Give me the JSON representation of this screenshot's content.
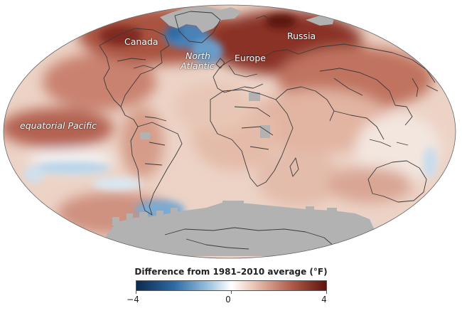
{
  "labels": {
    "canada": "Canada",
    "north_atlantic_line1": "North",
    "north_atlantic_line2": "Atlantic",
    "europe": "Europe",
    "russia": "Russia",
    "equatorial_pacific": "equatorial Pacific"
  },
  "legend": {
    "title": "Difference from 1981–2010 average (°F)",
    "min_label": "−4",
    "mid_label": "0",
    "max_label": "4",
    "range": [
      -4,
      4
    ],
    "colors": [
      "#0d2a4e",
      "#2d6ba6",
      "#9cc3df",
      "#ffffff",
      "#eac4b4",
      "#b05a48",
      "#5e140e"
    ]
  },
  "colors": {
    "no_data": "#b2b2b2",
    "border_lines": "#3a3a3a"
  }
}
